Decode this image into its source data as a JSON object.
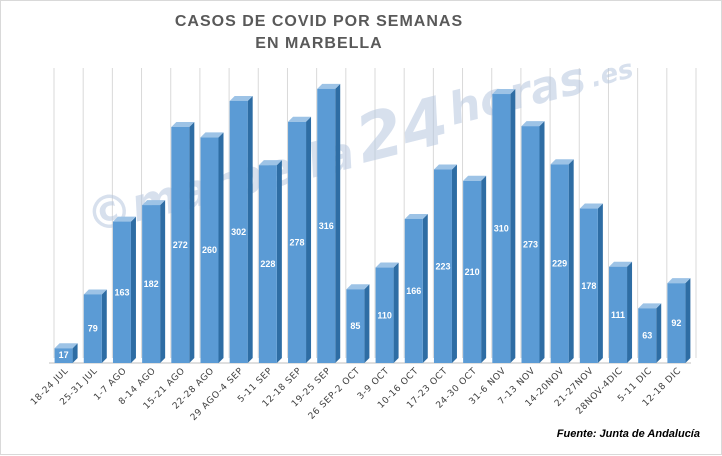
{
  "chart_data": {
    "type": "bar",
    "title_lines": [
      "CASOS DE COVID POR SEMANAS",
      "EN MARBELLA"
    ],
    "categories": [
      "18-24 JUL",
      "25-31 JUL",
      "1-7 AGO",
      "8-14 AGO",
      "15-21 AGO",
      "22-28 AGO",
      "29 AGO-4 SEP",
      "5-11 SEP",
      "12-18 SEP",
      "19-25 SEP",
      "26 SEP-2 OCT",
      "3-9 OCT",
      "10-16 OCT",
      "17-23 OCT",
      "24-30 OCT",
      "31-6 NOV",
      "7-13 NOV",
      "14-20NOV",
      "21-27NOV",
      "28NOV-4DIC",
      "5-11 DIC",
      "12-18 DIC"
    ],
    "values": [
      17,
      79,
      163,
      182,
      272,
      260,
      302,
      228,
      278,
      316,
      85,
      110,
      166,
      223,
      210,
      310,
      273,
      229,
      178,
      111,
      63,
      92
    ],
    "ylim": [
      0,
      340
    ],
    "gridlines": true,
    "bar_color": "#5b9bd5",
    "bar_side_color": "#2e6da4",
    "bar_top_color": "#9dc3e6",
    "data_label_color": "#ffffff",
    "source": "Fuente: Junta de Andalucía"
  },
  "watermark": {
    "text_left": "©marbella",
    "text_mid": "24",
    "text_right": "horas",
    "text_suffix": ".es"
  }
}
